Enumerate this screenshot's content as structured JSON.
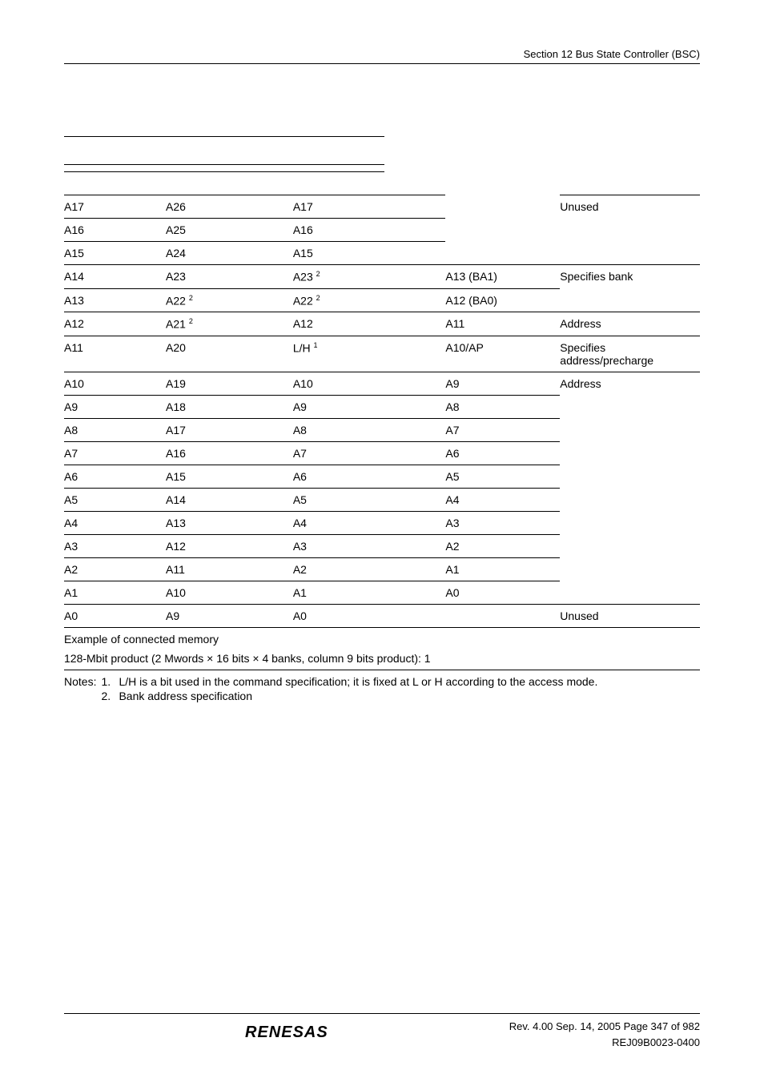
{
  "doc": {
    "header_section": "Section 12   Bus State Controller (BSC)",
    "footer_rev": "Rev. 4.00  Sep. 14, 2005  Page 347 of 982",
    "footer_code": "REJ09B0023-0400",
    "logo": "RENESAS"
  },
  "table": {
    "rows": [
      {
        "c1": "A17",
        "c2": "A26",
        "c3": "A17",
        "c4": "",
        "c5": "Unused"
      },
      {
        "c1": "A16",
        "c2": "A25",
        "c3": "A16",
        "c4": "",
        "c5": ""
      },
      {
        "c1": "A15",
        "c2": "A24",
        "c3": "A15",
        "c4": "",
        "c5": ""
      },
      {
        "c1": "A14",
        "c2": "A23",
        "c3": "A23 ",
        "c3sup": "2",
        "c4": "A13 (BA1)",
        "c5": "Specifies bank"
      },
      {
        "c1": "A13",
        "c2": "A22 ",
        "c2sup": "2",
        "c3": "A22 ",
        "c3sup": "2",
        "c4": "A12 (BA0)",
        "c5": ""
      },
      {
        "c1": "A12",
        "c2": "A21 ",
        "c2sup": "2",
        "c3": "A12",
        "c4": "A11",
        "c5": "Address"
      },
      {
        "c1": "A11",
        "c2": "A20",
        "c3": "L/H ",
        "c3sup": "1",
        "c4": "A10/AP",
        "c5": "Specifies address/precharge"
      },
      {
        "c1": "A10",
        "c2": "A19",
        "c3": "A10",
        "c4": "A9",
        "c5": "Address"
      },
      {
        "c1": "A9",
        "c2": "A18",
        "c3": "A9",
        "c4": "A8",
        "c5": ""
      },
      {
        "c1": "A8",
        "c2": "A17",
        "c3": "A8",
        "c4": "A7",
        "c5": ""
      },
      {
        "c1": "A7",
        "c2": "A16",
        "c3": "A7",
        "c4": "A6",
        "c5": ""
      },
      {
        "c1": "A6",
        "c2": "A15",
        "c3": "A6",
        "c4": "A5",
        "c5": ""
      },
      {
        "c1": "A5",
        "c2": "A14",
        "c3": "A5",
        "c4": "A4",
        "c5": ""
      },
      {
        "c1": "A4",
        "c2": "A13",
        "c3": "A4",
        "c4": "A3",
        "c5": ""
      },
      {
        "c1": "A3",
        "c2": "A12",
        "c3": "A3",
        "c4": "A2",
        "c5": ""
      },
      {
        "c1": "A2",
        "c2": "A11",
        "c3": "A2",
        "c4": "A1",
        "c5": ""
      },
      {
        "c1": "A1",
        "c2": "A10",
        "c3": "A1",
        "c4": "A0",
        "c5": ""
      },
      {
        "c1": "A0",
        "c2": "A9",
        "c3": "A0",
        "c4": "",
        "c5": "Unused"
      }
    ],
    "caption1": "Example of connected memory",
    "caption2": "128-Mbit product (2 Mwords × 16 bits × 4 banks, column 9 bits product): 1"
  },
  "notes": {
    "label": "Notes:",
    "items": [
      {
        "num": "1.",
        "text": "L/H is a bit used in the command specification; it is fixed at L or H according to the access mode."
      },
      {
        "num": "2.",
        "text": "Bank address specification"
      }
    ]
  }
}
